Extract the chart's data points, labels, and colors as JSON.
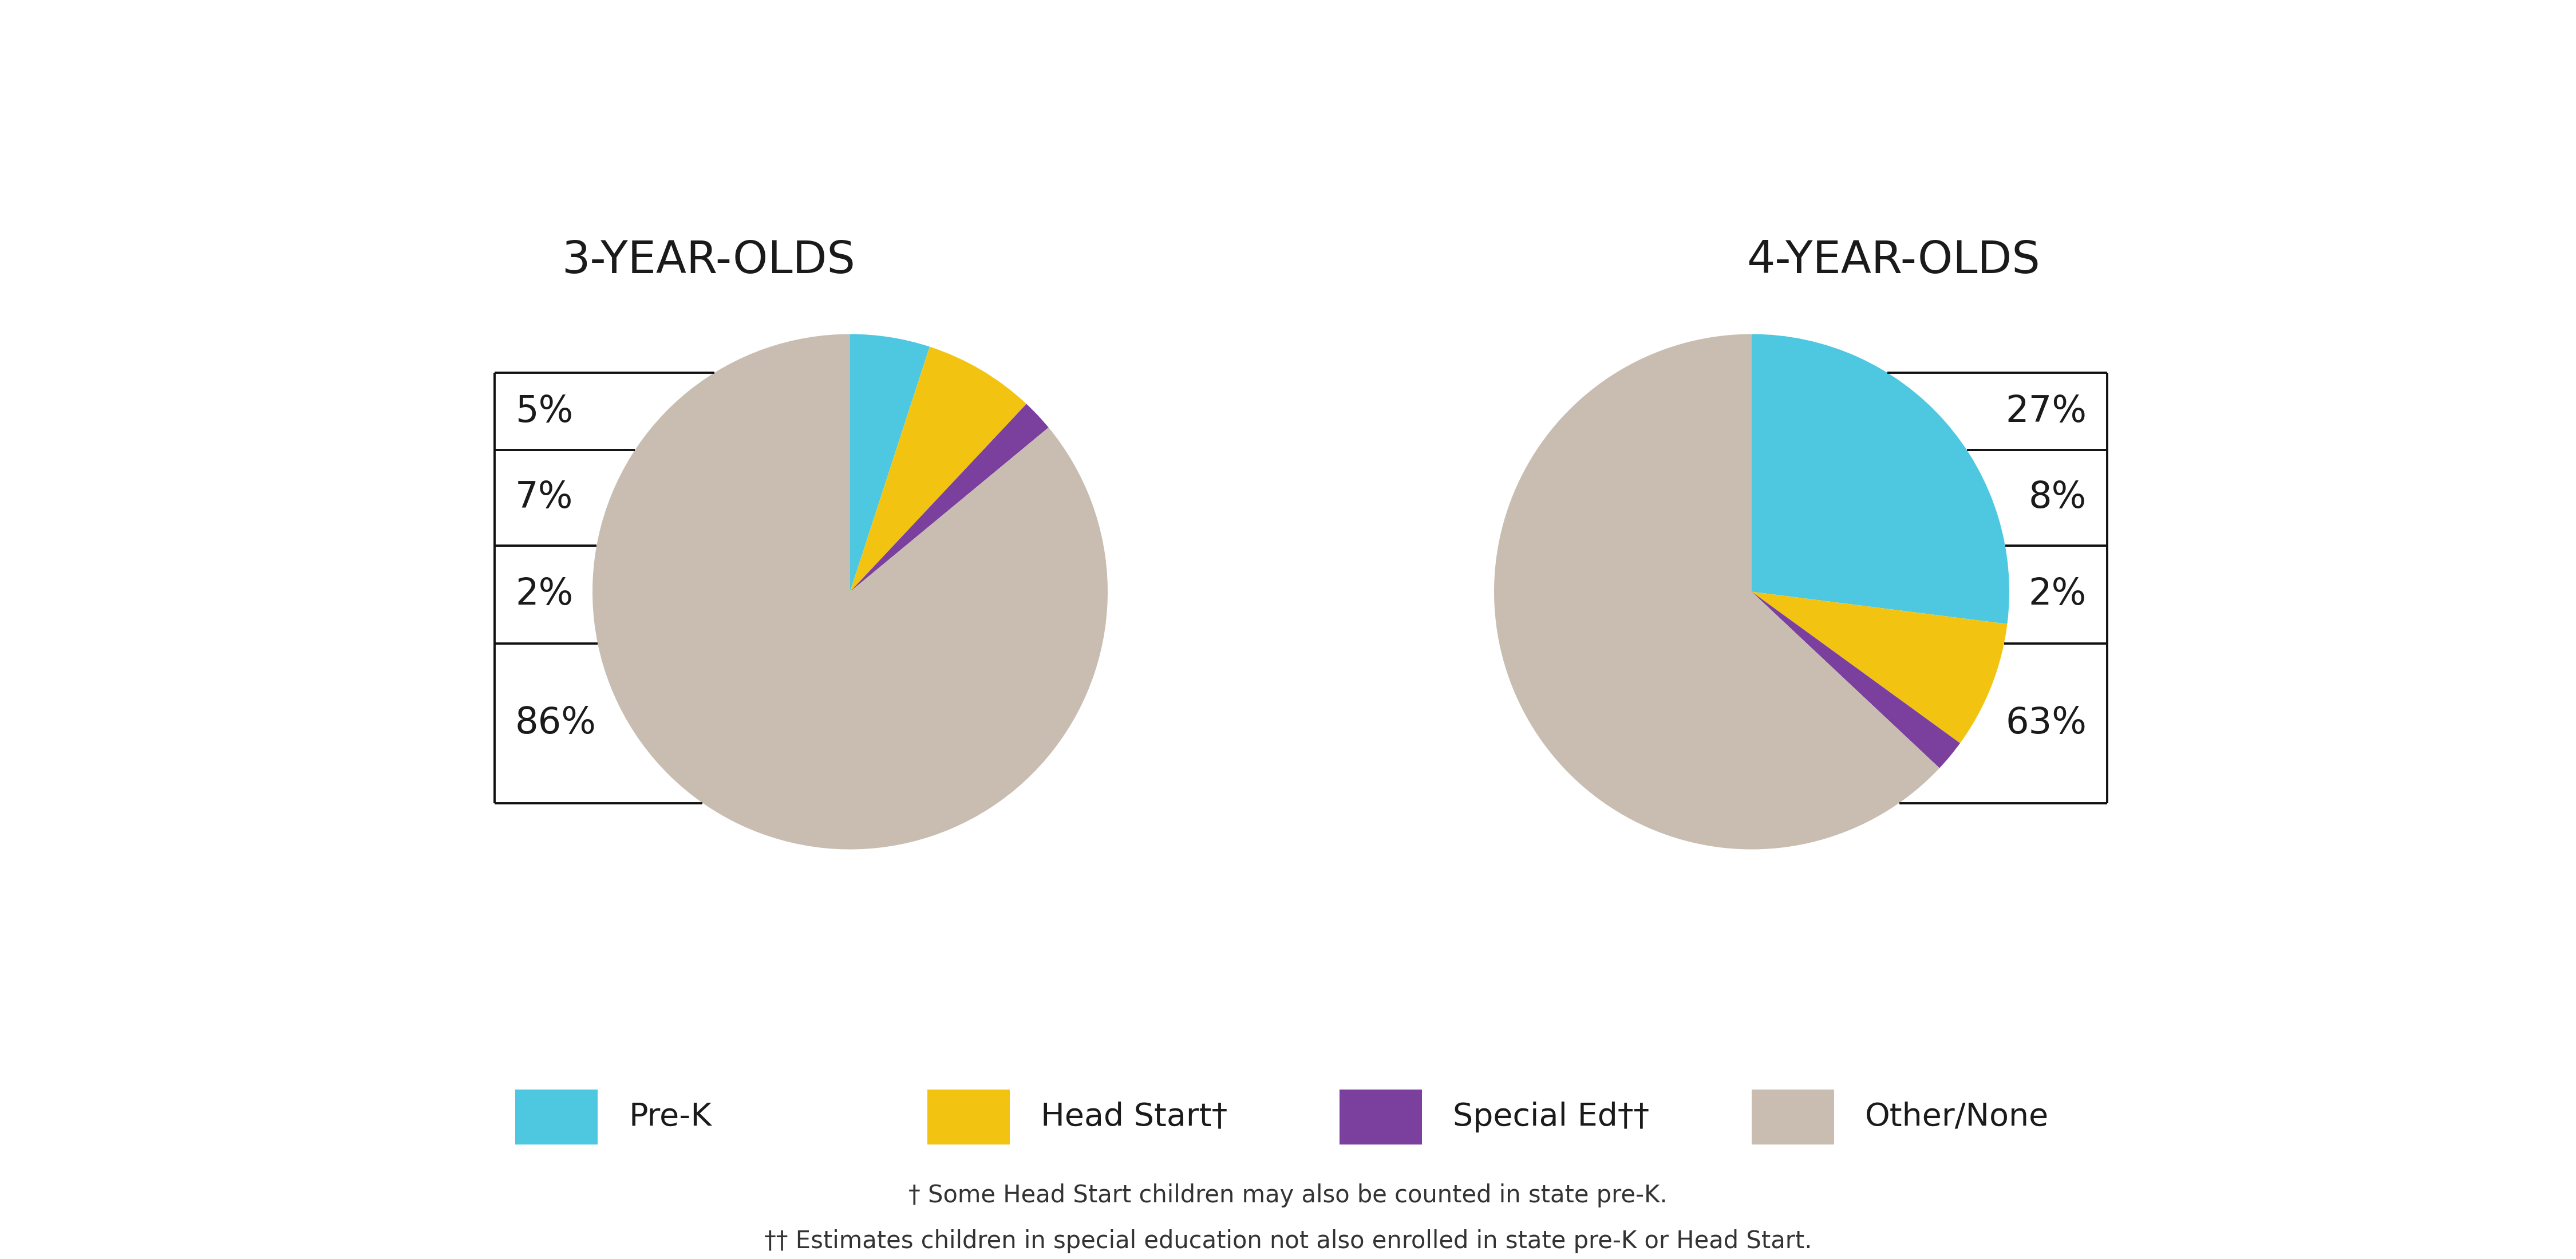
{
  "title_3yr": "3-YEAR-OLDS",
  "title_4yr": "4-YEAR-OLDS",
  "chart3": {
    "labels": [
      "Pre-K",
      "Head Start",
      "Special Ed",
      "Other/None"
    ],
    "values": [
      5,
      7,
      2,
      86
    ],
    "pct_labels": [
      "5%",
      "7%",
      "2%",
      "86%"
    ],
    "colors": [
      "#4dc8e0",
      "#f2c411",
      "#7b3f9e",
      "#c8bdb0"
    ]
  },
  "chart4": {
    "labels": [
      "Pre-K",
      "Head Start",
      "Special Ed",
      "Other/None"
    ],
    "values": [
      27,
      8,
      2,
      63
    ],
    "pct_labels": [
      "27%",
      "8%",
      "2%",
      "63%"
    ],
    "colors": [
      "#4dc8e0",
      "#f2c411",
      "#7b3f9e",
      "#c8bdb0"
    ]
  },
  "legend_labels": [
    "Pre-K",
    "Head Start†",
    "Special Ed††",
    "Other/None"
  ],
  "legend_colors": [
    "#4dc8e0",
    "#f2c411",
    "#7b3f9e",
    "#c8bdb0"
  ],
  "footnote1": "† Some Head Start children may also be counted in state pre-K.",
  "footnote2": "†† Estimates children in special education not also enrolled in state pre-K or Head Start.",
  "bg_color": "#ffffff",
  "title_fontsize": 56,
  "label_fontsize": 46,
  "legend_fontsize": 40,
  "footnote_fontsize": 30
}
